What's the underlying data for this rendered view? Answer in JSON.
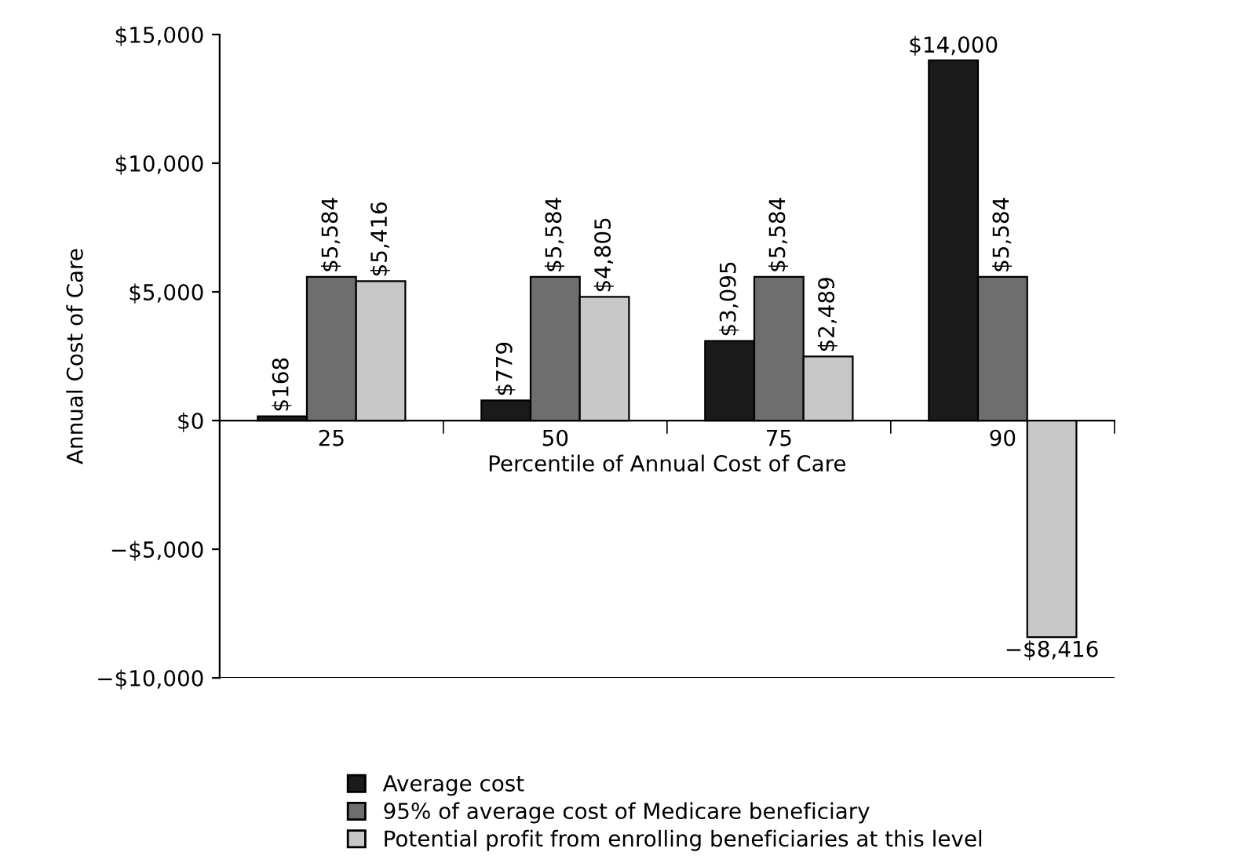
{
  "chart_data": {
    "type": "bar",
    "xlabel": "Percentile of Annual Cost of Care",
    "ylabel": "Annual Cost of Care",
    "categories": [
      "25",
      "50",
      "75",
      "90"
    ],
    "series": [
      {
        "name": "Average cost",
        "color": "#1a1a1a",
        "values": [
          168,
          779,
          3095,
          14000
        ],
        "value_labels": [
          "$168",
          "$779",
          "$3,095",
          "$14,000"
        ]
      },
      {
        "name": "95% of average cost of Medicare beneficiary",
        "color": "#6e6e6e",
        "values": [
          5584,
          5584,
          5584,
          5584
        ],
        "value_labels": [
          "$5,584",
          "$5,584",
          "$5,584",
          "$5,584"
        ]
      },
      {
        "name": "Potential profit from enrolling beneficiaries at this level",
        "color": "#c8c8c8",
        "values": [
          5416,
          4805,
          2489,
          -8416
        ],
        "value_labels": [
          "$5,416",
          "$4,805",
          "$2,489",
          "−$8,416"
        ]
      }
    ],
    "ylim": [
      -10000,
      15000
    ],
    "yticks": [
      {
        "value": -10000,
        "label": "−$10,000"
      },
      {
        "value": -5000,
        "label": "−$5,000"
      },
      {
        "value": 0,
        "label": "$0"
      },
      {
        "value": 5000,
        "label": "$5,000"
      },
      {
        "value": 10000,
        "label": "$10,000"
      },
      {
        "value": 15000,
        "label": "$15,000"
      }
    ],
    "grid": false,
    "legend": "bottom"
  }
}
